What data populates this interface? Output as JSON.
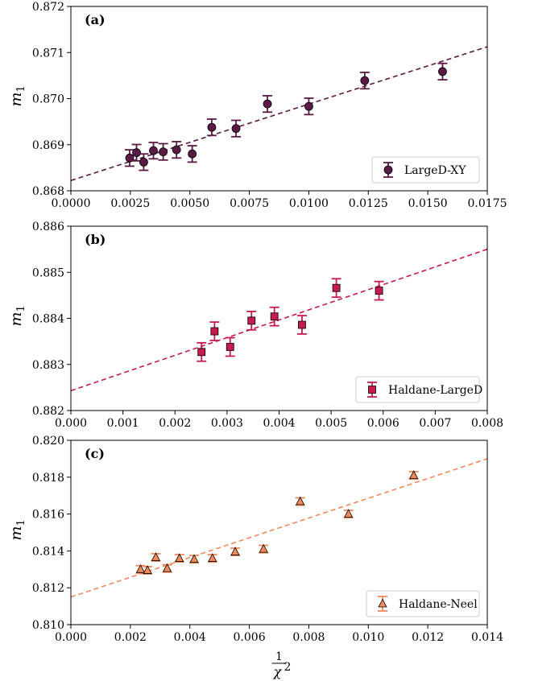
{
  "chart_data": [
    {
      "type": "scatter",
      "panel_label": "(a)",
      "ylabel": "m",
      "ylabel_sub": "1",
      "xlabel": "",
      "xlim": [
        0,
        0.0175
      ],
      "ylim": [
        0.8675,
        0.872
      ],
      "xticks": [
        "0.0000",
        "0.0025",
        "0.0050",
        "0.0075",
        "0.0100",
        "0.0125",
        "0.0150",
        "0.0175"
      ],
      "yticks": [
        "0.868",
        "0.869",
        "0.870",
        "0.871",
        "0.872"
      ],
      "grid": false,
      "legend_position": "bottom-right",
      "series": [
        {
          "name": "LargeD-XY",
          "marker": "circle",
          "color": "#5a1a45",
          "x": [
            0.00247,
            0.00276,
            0.00306,
            0.00347,
            0.00388,
            0.00444,
            0.0051,
            0.00592,
            0.00694,
            0.00826,
            0.01,
            0.01235,
            0.01562
          ],
          "y": [
            0.8683,
            0.86843,
            0.8682,
            0.86848,
            0.86845,
            0.8685,
            0.8684,
            0.86905,
            0.86902,
            0.86962,
            0.86956,
            0.87019,
            0.87041
          ],
          "yerr": [
            0.0002,
            0.0002,
            0.0002,
            0.0002,
            0.0002,
            0.0002,
            0.0002,
            0.0002,
            0.0002,
            0.0002,
            0.0002,
            0.0002,
            0.0002
          ]
        }
      ],
      "fit": {
        "slope": 0.1866,
        "intercept": 0.86775,
        "color": "#5a1a45"
      }
    },
    {
      "type": "scatter",
      "panel_label": "(b)",
      "ylabel": "m",
      "ylabel_sub": "1",
      "xlabel": "",
      "xlim": [
        0,
        0.008
      ],
      "ylim": [
        0.882,
        0.886
      ],
      "xticks": [
        "0.000",
        "0.001",
        "0.002",
        "0.003",
        "0.004",
        "0.005",
        "0.006",
        "0.007",
        "0.008"
      ],
      "yticks": [
        "0.882",
        "0.883",
        "0.884",
        "0.885",
        "0.886"
      ],
      "grid": false,
      "legend_position": "bottom-right",
      "series": [
        {
          "name": "Haldane-LargeD",
          "marker": "square",
          "color": "#c51b4f",
          "x": [
            0.00251,
            0.00276,
            0.00306,
            0.00347,
            0.00391,
            0.00444,
            0.0051,
            0.00592
          ],
          "y": [
            0.88327,
            0.88372,
            0.88338,
            0.88395,
            0.88404,
            0.88386,
            0.88466,
            0.8846
          ],
          "yerr": [
            0.0002,
            0.0002,
            0.0002,
            0.0002,
            0.0002,
            0.0002,
            0.0002,
            0.0002
          ]
        }
      ],
      "fit": {
        "slope": 0.3838,
        "intercept": 0.88243,
        "color": "#c51b4f"
      }
    },
    {
      "type": "scatter",
      "panel_label": "(c)",
      "ylabel": "m",
      "ylabel_sub": "1",
      "xlabel": "χ",
      "xlim": [
        0,
        0.015
      ],
      "ylim": [
        0.81,
        0.82
      ],
      "xticks": [
        "0.000",
        "0.002",
        "0.004",
        "0.006",
        "0.008",
        "0.010",
        "0.012",
        "0.014"
      ],
      "yticks": [
        "0.810",
        "0.812",
        "0.814",
        "0.816",
        "0.818",
        "0.820"
      ],
      "grid": false,
      "legend_position": "bottom-right",
      "series": [
        {
          "name": "Haldane-Neel",
          "marker": "triangle",
          "color": "#f08a5a",
          "x": [
            0.00251,
            0.00276,
            0.00306,
            0.00347,
            0.00391,
            0.00444,
            0.0051,
            0.00592,
            0.00694,
            0.00826,
            0.01,
            0.01235
          ],
          "y": [
            0.813,
            0.81295,
            0.81365,
            0.81305,
            0.8136,
            0.81355,
            0.8136,
            0.81395,
            0.8141,
            0.81668,
            0.816,
            0.8181
          ],
          "yerr": [
            0.0002,
            0.0002,
            0.0002,
            0.0002,
            0.0002,
            0.0002,
            0.0002,
            0.0002,
            0.0002,
            0.0002,
            0.0002,
            0.0002
          ]
        }
      ],
      "fit": {
        "slope": 0.5,
        "intercept": 0.8115,
        "color": "#f08a5a"
      }
    }
  ]
}
